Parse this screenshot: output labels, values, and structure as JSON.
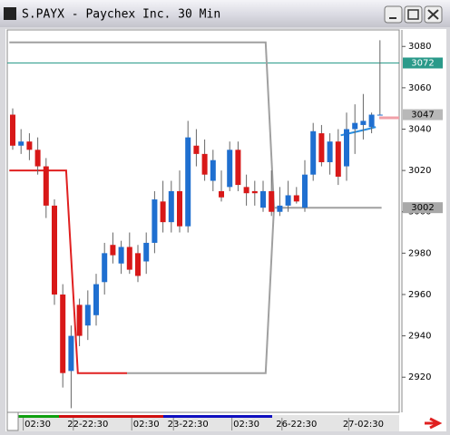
{
  "window_title": "S.PAYX - Paychex Inc. 30 Min",
  "chart_data": {
    "type": "candlestick",
    "categories": [
      null,
      null,
      null,
      "02:30",
      null,
      null,
      null,
      null,
      null,
      "22-22:30",
      null,
      null,
      null,
      null,
      null,
      null,
      "02:30",
      null,
      null,
      null,
      null,
      "23-22:30",
      null,
      null,
      null,
      null,
      null,
      null,
      "02:30",
      null,
      null,
      null,
      null,
      null,
      "26-22:30",
      null,
      null,
      null,
      null,
      null,
      null,
      null,
      "27-02:30",
      null,
      null
    ],
    "open": [
      3047,
      3032,
      3034,
      3030,
      3022,
      3003,
      2960,
      2923,
      2955,
      2945,
      2950,
      2966,
      2984,
      2975,
      2983,
      2980,
      2976,
      2985,
      3005,
      2995,
      3010,
      2993,
      3032,
      3028,
      3015,
      3010,
      3012,
      3030,
      3012,
      3010,
      3002,
      3010,
      3000,
      3003,
      3008,
      3002,
      3018,
      3038,
      3024,
      3034,
      3022,
      3040,
      3042,
      3041,
      3047
    ],
    "high": [
      3050,
      3040,
      3038,
      3036,
      3026,
      3006,
      2965,
      2945,
      2958,
      2962,
      2970,
      2985,
      2990,
      2986,
      2990,
      2984,
      2990,
      3010,
      3015,
      3015,
      3020,
      3044,
      3040,
      3035,
      3030,
      3020,
      3034,
      3034,
      3018,
      3015,
      3015,
      3020,
      3012,
      3015,
      3012,
      3025,
      3043,
      3042,
      3038,
      3040,
      3048,
      3052,
      3057,
      3048,
      3083
    ],
    "low": [
      3030,
      3028,
      3025,
      3018,
      2997,
      2955,
      2915,
      2905,
      2935,
      2938,
      2945,
      2960,
      2975,
      2970,
      2970,
      2966,
      2970,
      2980,
      2990,
      2990,
      2990,
      2990,
      3022,
      3015,
      3010,
      3005,
      3010,
      3010,
      3003,
      3003,
      3000,
      2998,
      2998,
      3000,
      3004,
      3000,
      3015,
      3022,
      3018,
      3013,
      3015,
      3028,
      3035,
      3038,
      3047
    ],
    "close": [
      3032,
      3034,
      3030,
      3022,
      3003,
      2960,
      2922,
      2940,
      2940,
      2955,
      2965,
      2980,
      2979,
      2983,
      2972,
      2969,
      2985,
      3006,
      2995,
      3010,
      2993,
      3036,
      3028,
      3018,
      3025,
      3007,
      3030,
      3013,
      3009,
      3009,
      3010,
      3000,
      3003,
      3008,
      3005,
      3018,
      3039,
      3024,
      3034,
      3017,
      3040,
      3043,
      3044,
      3047,
      3047
    ],
    "up_color": "#1f6fd0",
    "down_color": "#d81818",
    "overlays": [
      {
        "color": "#e02020",
        "x": [
          -0.4,
          6.4,
          7.8,
          13.7
        ],
        "values": [
          3020,
          3020,
          2922,
          2922
        ]
      },
      {
        "color": "#a0a0a0",
        "x": [
          -0.4,
          30.3,
          31.3,
          44.2
        ],
        "values": [
          3082,
          3082,
          3002,
          3002
        ]
      },
      {
        "color": "#a0a0a0",
        "x": [
          13.7,
          30.3,
          31.3
        ],
        "values": [
          2922,
          2922,
          3002
        ]
      },
      {
        "color": "#2a8ee0",
        "x": [
          39.3,
          42.5,
          43.5
        ],
        "values": [
          3037,
          3040,
          3041
        ]
      }
    ],
    "markers": [
      {
        "value": 3072,
        "color": "#2a9a8a",
        "line": true
      },
      {
        "value": 3047,
        "color": "#b8b8b8",
        "line": false
      },
      {
        "value": 3002,
        "color": "#a8a8a8",
        "line": false
      }
    ],
    "ylim": [
      2903,
      3088
    ],
    "yticks": [
      2920,
      2940,
      2960,
      2980,
      3000,
      3020,
      3040,
      3060,
      3080
    ]
  }
}
